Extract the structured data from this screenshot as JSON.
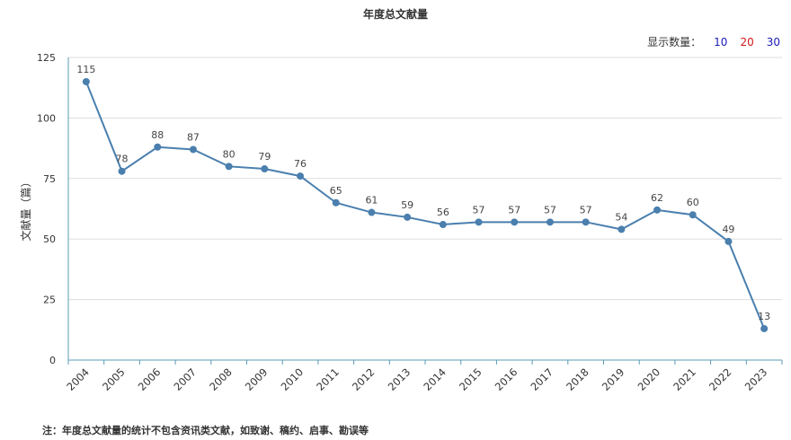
{
  "chart_data": {
    "type": "line",
    "title": "年度总文献量",
    "ylabel": "文献量（篇）",
    "xlabel": "",
    "ylim": [
      0,
      125
    ],
    "yticks": [
      0,
      25,
      50,
      75,
      100,
      125
    ],
    "grid": true,
    "categories": [
      "2004",
      "2005",
      "2006",
      "2007",
      "2008",
      "2009",
      "2010",
      "2011",
      "2012",
      "2013",
      "2014",
      "2015",
      "2016",
      "2017",
      "2018",
      "2019",
      "2020",
      "2021",
      "2022",
      "2023"
    ],
    "series": [
      {
        "values": [
          115,
          78,
          88,
          87,
          80,
          79,
          76,
          65,
          61,
          59,
          56,
          57,
          57,
          57,
          57,
          54,
          62,
          60,
          49,
          13
        ]
      }
    ],
    "colors": {
      "line": "#4a7fae",
      "axis": "#5b9bb5",
      "grid": "#dddddd"
    }
  },
  "controls": {
    "count_label": "显示数量：",
    "options": [
      {
        "label": "10",
        "color": "#1a1ab8"
      },
      {
        "label": "20",
        "color": "#d01818"
      },
      {
        "label": "30",
        "color": "#1a1ab8"
      }
    ]
  },
  "footnote": "注：年度总文献量的统计不包含资讯类文献，如致谢、稿约、启事、勘误等"
}
